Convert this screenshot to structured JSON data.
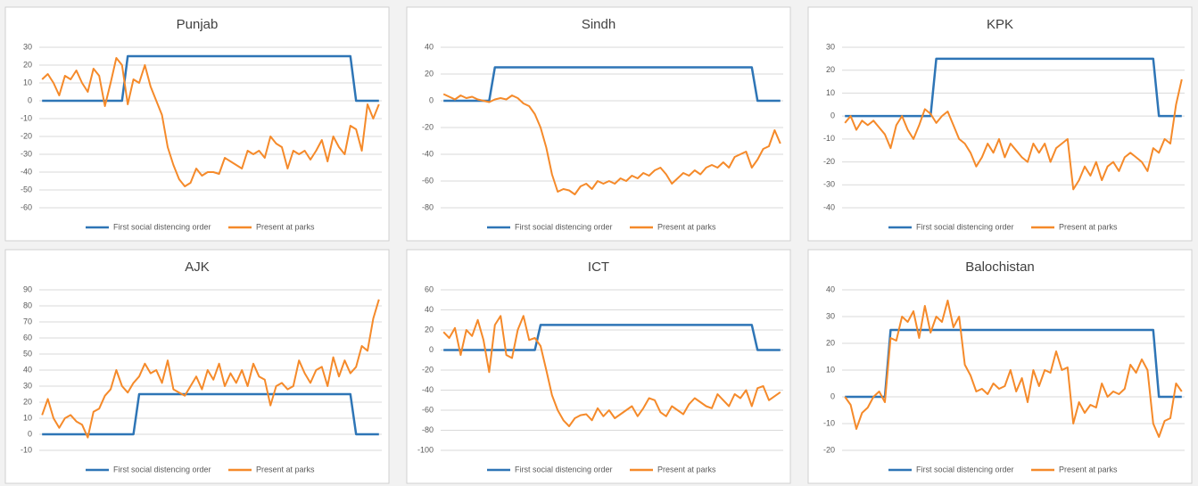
{
  "chart_data": [
    {
      "type": "line",
      "title": "Punjab",
      "ylim": [
        -60,
        30
      ],
      "yticks": [
        -60,
        -50,
        -40,
        -30,
        -20,
        -10,
        0,
        10,
        20,
        30
      ],
      "grid": true,
      "series": [
        {
          "name": "First social distencing order",
          "color": "#2e75b6",
          "values": [
            0,
            0,
            0,
            0,
            0,
            0,
            0,
            0,
            0,
            0,
            0,
            0,
            0,
            0,
            0,
            25,
            25,
            25,
            25,
            25,
            25,
            25,
            25,
            25,
            25,
            25,
            25,
            25,
            25,
            25,
            25,
            25,
            25,
            25,
            25,
            25,
            25,
            25,
            25,
            25,
            25,
            25,
            25,
            25,
            25,
            25,
            25,
            25,
            25,
            25,
            25,
            25,
            25,
            25,
            25,
            0,
            0,
            0,
            0,
            0
          ]
        },
        {
          "name": "Present at parks",
          "color": "#f58a2a",
          "values": [
            12,
            15,
            10,
            3,
            14,
            12,
            17,
            10,
            5,
            18,
            14,
            -3,
            10,
            24,
            20,
            -2,
            12,
            10,
            20,
            8,
            0,
            -8,
            -26,
            -36,
            -44,
            -48,
            -46,
            -38,
            -42,
            -40,
            -40,
            -41,
            -32,
            -34,
            -36,
            -38,
            -28,
            -30,
            -28,
            -32,
            -20,
            -24,
            -26,
            -38,
            -28,
            -30,
            -28,
            -33,
            -28,
            -22,
            -34,
            -20,
            -26,
            -30,
            -14,
            -16,
            -28,
            -2,
            -10,
            -2
          ]
        }
      ]
    },
    {
      "type": "line",
      "title": "Sindh",
      "ylim": [
        -80,
        40
      ],
      "yticks": [
        -80,
        -60,
        -40,
        -20,
        0,
        20,
        40
      ],
      "grid": true,
      "series": [
        {
          "name": "First social distencing order",
          "color": "#2e75b6",
          "values": [
            0,
            0,
            0,
            0,
            0,
            0,
            0,
            0,
            0,
            25,
            25,
            25,
            25,
            25,
            25,
            25,
            25,
            25,
            25,
            25,
            25,
            25,
            25,
            25,
            25,
            25,
            25,
            25,
            25,
            25,
            25,
            25,
            25,
            25,
            25,
            25,
            25,
            25,
            25,
            25,
            25,
            25,
            25,
            25,
            25,
            25,
            25,
            25,
            25,
            25,
            25,
            25,
            25,
            25,
            25,
            0,
            0,
            0,
            0,
            0
          ]
        },
        {
          "name": "Present at parks",
          "color": "#f58a2a",
          "values": [
            5,
            3,
            1,
            4,
            2,
            3,
            1,
            0,
            -1,
            1,
            2,
            1,
            4,
            2,
            -2,
            -4,
            -10,
            -20,
            -35,
            -55,
            -68,
            -66,
            -67,
            -70,
            -64,
            -62,
            -66,
            -60,
            -62,
            -60,
            -62,
            -58,
            -60,
            -56,
            -58,
            -54,
            -56,
            -52,
            -50,
            -55,
            -62,
            -58,
            -54,
            -56,
            -52,
            -55,
            -50,
            -48,
            -50,
            -46,
            -50,
            -42,
            -40,
            -38,
            -50,
            -44,
            -36,
            -34,
            -22,
            -32
          ]
        }
      ]
    },
    {
      "type": "line",
      "title": "KPK",
      "ylim": [
        -40,
        30
      ],
      "yticks": [
        -40,
        -30,
        -20,
        -10,
        0,
        10,
        20,
        30
      ],
      "grid": true,
      "series": [
        {
          "name": "First social distencing order",
          "color": "#2e75b6",
          "values": [
            0,
            0,
            0,
            0,
            0,
            0,
            0,
            0,
            0,
            0,
            0,
            0,
            0,
            0,
            0,
            0,
            25,
            25,
            25,
            25,
            25,
            25,
            25,
            25,
            25,
            25,
            25,
            25,
            25,
            25,
            25,
            25,
            25,
            25,
            25,
            25,
            25,
            25,
            25,
            25,
            25,
            25,
            25,
            25,
            25,
            25,
            25,
            25,
            25,
            25,
            25,
            25,
            25,
            25,
            25,
            0,
            0,
            0,
            0,
            0
          ]
        },
        {
          "name": "Present at parks",
          "color": "#f58a2a",
          "values": [
            -3,
            0,
            -6,
            -2,
            -4,
            -2,
            -5,
            -8,
            -14,
            -4,
            0,
            -6,
            -10,
            -4,
            3,
            1,
            -3,
            0,
            2,
            -4,
            -10,
            -12,
            -16,
            -22,
            -18,
            -12,
            -16,
            -10,
            -18,
            -12,
            -15,
            -18,
            -20,
            -12,
            -16,
            -12,
            -20,
            -14,
            -12,
            -10,
            -32,
            -28,
            -22,
            -26,
            -20,
            -28,
            -22,
            -20,
            -24,
            -18,
            -16,
            -18,
            -20,
            -24,
            -14,
            -16,
            -10,
            -12,
            5,
            16
          ]
        }
      ]
    },
    {
      "type": "line",
      "title": "AJK",
      "ylim": [
        -10,
        90
      ],
      "yticks": [
        -10,
        0,
        10,
        20,
        30,
        40,
        50,
        60,
        70,
        80,
        90
      ],
      "grid": true,
      "series": [
        {
          "name": "First social distencing order",
          "color": "#2e75b6",
          "values": [
            0,
            0,
            0,
            0,
            0,
            0,
            0,
            0,
            0,
            0,
            0,
            0,
            0,
            0,
            0,
            0,
            0,
            25,
            25,
            25,
            25,
            25,
            25,
            25,
            25,
            25,
            25,
            25,
            25,
            25,
            25,
            25,
            25,
            25,
            25,
            25,
            25,
            25,
            25,
            25,
            25,
            25,
            25,
            25,
            25,
            25,
            25,
            25,
            25,
            25,
            25,
            25,
            25,
            25,
            25,
            0,
            0,
            0,
            0,
            0
          ]
        },
        {
          "name": "Present at parks",
          "color": "#f58a2a",
          "values": [
            12,
            22,
            10,
            4,
            10,
            12,
            8,
            6,
            -2,
            14,
            16,
            24,
            28,
            40,
            30,
            26,
            32,
            36,
            44,
            38,
            40,
            32,
            46,
            28,
            26,
            24,
            30,
            36,
            28,
            40,
            34,
            44,
            30,
            38,
            32,
            40,
            30,
            44,
            36,
            34,
            18,
            30,
            32,
            28,
            30,
            46,
            38,
            32,
            40,
            42,
            30,
            48,
            36,
            46,
            38,
            42,
            55,
            52,
            72,
            84
          ]
        }
      ]
    },
    {
      "type": "line",
      "title": "ICT",
      "ylim": [
        -100,
        60
      ],
      "yticks": [
        -100,
        -80,
        -60,
        -40,
        -20,
        0,
        20,
        40,
        60
      ],
      "grid": true,
      "series": [
        {
          "name": "First social distencing order",
          "color": "#2e75b6",
          "values": [
            0,
            0,
            0,
            0,
            0,
            0,
            0,
            0,
            0,
            0,
            0,
            0,
            0,
            0,
            0,
            0,
            0,
            25,
            25,
            25,
            25,
            25,
            25,
            25,
            25,
            25,
            25,
            25,
            25,
            25,
            25,
            25,
            25,
            25,
            25,
            25,
            25,
            25,
            25,
            25,
            25,
            25,
            25,
            25,
            25,
            25,
            25,
            25,
            25,
            25,
            25,
            25,
            25,
            25,
            25,
            0,
            0,
            0,
            0,
            0
          ]
        },
        {
          "name": "Present at parks",
          "color": "#f58a2a",
          "values": [
            18,
            12,
            22,
            -5,
            20,
            14,
            30,
            10,
            -22,
            25,
            34,
            -5,
            -8,
            20,
            34,
            10,
            12,
            4,
            -20,
            -45,
            -60,
            -70,
            -76,
            -68,
            -65,
            -64,
            -70,
            -58,
            -66,
            -60,
            -68,
            -64,
            -60,
            -56,
            -66,
            -58,
            -48,
            -50,
            -62,
            -66,
            -56,
            -60,
            -64,
            -54,
            -48,
            -52,
            -56,
            -58,
            -44,
            -50,
            -56,
            -44,
            -48,
            -40,
            -56,
            -38,
            -36,
            -50,
            -46,
            -42
          ]
        }
      ]
    },
    {
      "type": "line",
      "title": "Balochistan",
      "ylim": [
        -20,
        40
      ],
      "yticks": [
        -20,
        -10,
        0,
        10,
        20,
        30,
        40
      ],
      "grid": true,
      "series": [
        {
          "name": "First social distencing order",
          "color": "#2e75b6",
          "values": [
            0,
            0,
            0,
            0,
            0,
            0,
            0,
            0,
            25,
            25,
            25,
            25,
            25,
            25,
            25,
            25,
            25,
            25,
            25,
            25,
            25,
            25,
            25,
            25,
            25,
            25,
            25,
            25,
            25,
            25,
            25,
            25,
            25,
            25,
            25,
            25,
            25,
            25,
            25,
            25,
            25,
            25,
            25,
            25,
            25,
            25,
            25,
            25,
            25,
            25,
            25,
            25,
            25,
            25,
            25,
            0,
            0,
            0,
            0,
            0
          ]
        },
        {
          "name": "Present at parks",
          "color": "#f58a2a",
          "values": [
            0,
            -3,
            -12,
            -6,
            -4,
            0,
            2,
            -2,
            22,
            21,
            30,
            28,
            32,
            22,
            34,
            24,
            30,
            28,
            36,
            26,
            30,
            12,
            8,
            2,
            3,
            1,
            5,
            3,
            4,
            10,
            2,
            7,
            -2,
            10,
            4,
            10,
            9,
            17,
            10,
            11,
            -10,
            -2,
            -6,
            -3,
            -4,
            5,
            0,
            2,
            1,
            3,
            12,
            9,
            14,
            10,
            -10,
            -15,
            -9,
            -8,
            5,
            2
          ]
        }
      ]
    }
  ]
}
